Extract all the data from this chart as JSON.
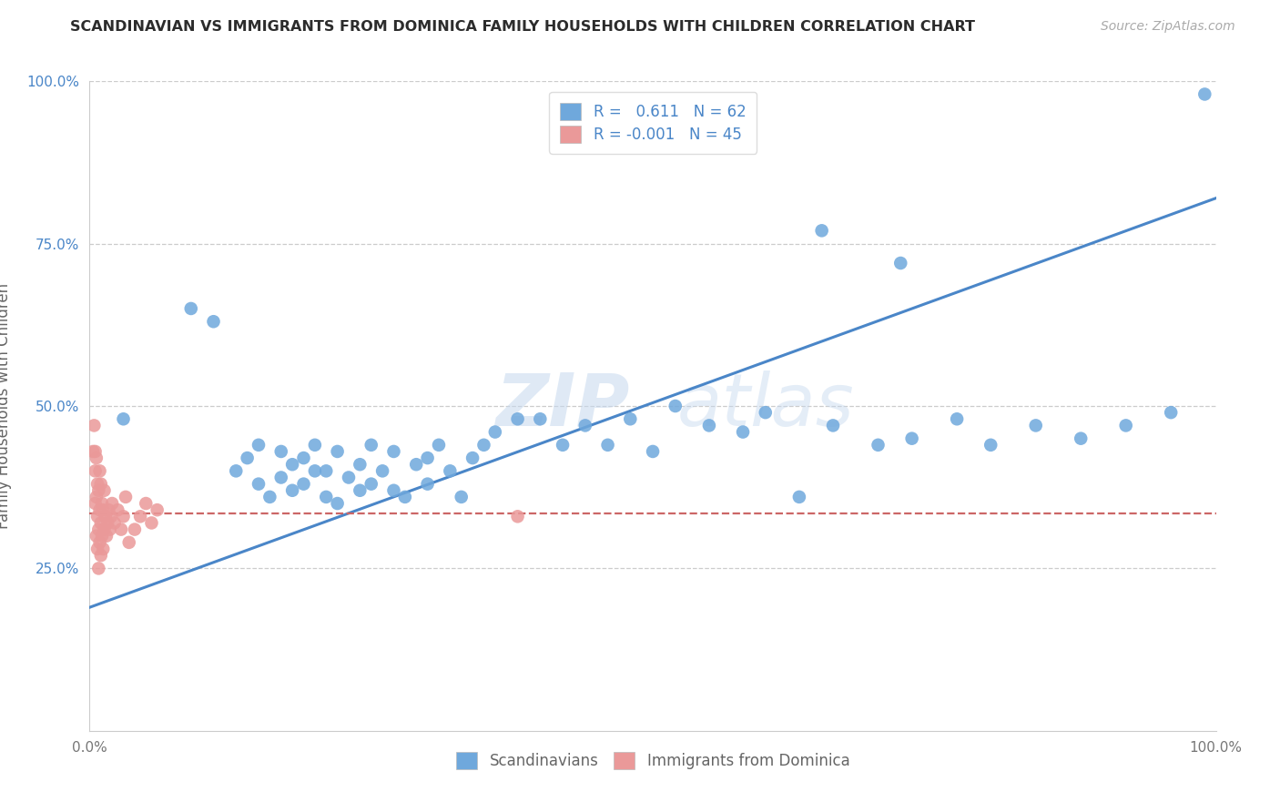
{
  "title": "SCANDINAVIAN VS IMMIGRANTS FROM DOMINICA FAMILY HOUSEHOLDS WITH CHILDREN CORRELATION CHART",
  "source": "Source: ZipAtlas.com",
  "ylabel": "Family Households with Children",
  "watermark": "ZIPatlas",
  "blue_color": "#6fa8dc",
  "pink_color": "#ea9999",
  "line_blue": "#4a86c8",
  "line_pink": "#cc6666",
  "grid_color": "#cccccc",
  "background_color": "#ffffff",
  "legend_line1": "R =   0.611   N = 62",
  "legend_line2": "R = -0.001   N = 45",
  "scandinavian_x": [
    0.03,
    0.09,
    0.11,
    0.13,
    0.14,
    0.15,
    0.15,
    0.16,
    0.17,
    0.17,
    0.18,
    0.18,
    0.19,
    0.19,
    0.2,
    0.2,
    0.21,
    0.21,
    0.22,
    0.22,
    0.23,
    0.24,
    0.24,
    0.25,
    0.25,
    0.26,
    0.27,
    0.27,
    0.28,
    0.29,
    0.3,
    0.3,
    0.31,
    0.32,
    0.33,
    0.34,
    0.35,
    0.36,
    0.38,
    0.4,
    0.42,
    0.44,
    0.46,
    0.48,
    0.5,
    0.52,
    0.55,
    0.58,
    0.6,
    0.63,
    0.66,
    0.7,
    0.73,
    0.77,
    0.8,
    0.84,
    0.88,
    0.92,
    0.96,
    0.99,
    0.65,
    0.72
  ],
  "scandinavian_y": [
    0.48,
    0.65,
    0.63,
    0.4,
    0.42,
    0.38,
    0.44,
    0.36,
    0.43,
    0.39,
    0.37,
    0.41,
    0.38,
    0.42,
    0.4,
    0.44,
    0.36,
    0.4,
    0.35,
    0.43,
    0.39,
    0.41,
    0.37,
    0.44,
    0.38,
    0.4,
    0.37,
    0.43,
    0.36,
    0.41,
    0.38,
    0.42,
    0.44,
    0.4,
    0.36,
    0.42,
    0.44,
    0.46,
    0.48,
    0.48,
    0.44,
    0.47,
    0.44,
    0.48,
    0.43,
    0.5,
    0.47,
    0.46,
    0.49,
    0.36,
    0.47,
    0.44,
    0.45,
    0.48,
    0.44,
    0.47,
    0.45,
    0.47,
    0.49,
    0.98,
    0.77,
    0.72
  ],
  "dominica_x": [
    0.005,
    0.005,
    0.005,
    0.006,
    0.006,
    0.006,
    0.007,
    0.007,
    0.007,
    0.008,
    0.008,
    0.008,
    0.009,
    0.009,
    0.009,
    0.01,
    0.01,
    0.01,
    0.011,
    0.011,
    0.012,
    0.012,
    0.013,
    0.013,
    0.014,
    0.015,
    0.016,
    0.017,
    0.018,
    0.019,
    0.02,
    0.022,
    0.025,
    0.028,
    0.03,
    0.032,
    0.035,
    0.04,
    0.045,
    0.05,
    0.055,
    0.06,
    0.003,
    0.004,
    0.38
  ],
  "dominica_y": [
    0.35,
    0.4,
    0.43,
    0.3,
    0.36,
    0.42,
    0.28,
    0.33,
    0.38,
    0.25,
    0.31,
    0.37,
    0.29,
    0.34,
    0.4,
    0.27,
    0.32,
    0.38,
    0.3,
    0.35,
    0.28,
    0.34,
    0.31,
    0.37,
    0.33,
    0.3,
    0.32,
    0.34,
    0.31,
    0.33,
    0.35,
    0.32,
    0.34,
    0.31,
    0.33,
    0.36,
    0.29,
    0.31,
    0.33,
    0.35,
    0.32,
    0.34,
    0.43,
    0.47,
    0.33
  ],
  "blue_line_x0": 0.0,
  "blue_line_y0": 0.19,
  "blue_line_x1": 1.0,
  "blue_line_y1": 0.82,
  "pink_line_y": 0.335,
  "xlim": [
    0.0,
    1.0
  ],
  "ylim": [
    0.0,
    1.0
  ],
  "ytick_positions": [
    0.25,
    0.5,
    0.75,
    1.0
  ],
  "ytick_labels": [
    "25.0%",
    "50.0%",
    "75.0%",
    "100.0%"
  ],
  "xtick_positions": [
    0.0,
    0.25,
    0.5,
    0.75,
    1.0
  ],
  "xtick_labels": [
    "0.0%",
    "",
    "",
    "",
    "100.0%"
  ]
}
